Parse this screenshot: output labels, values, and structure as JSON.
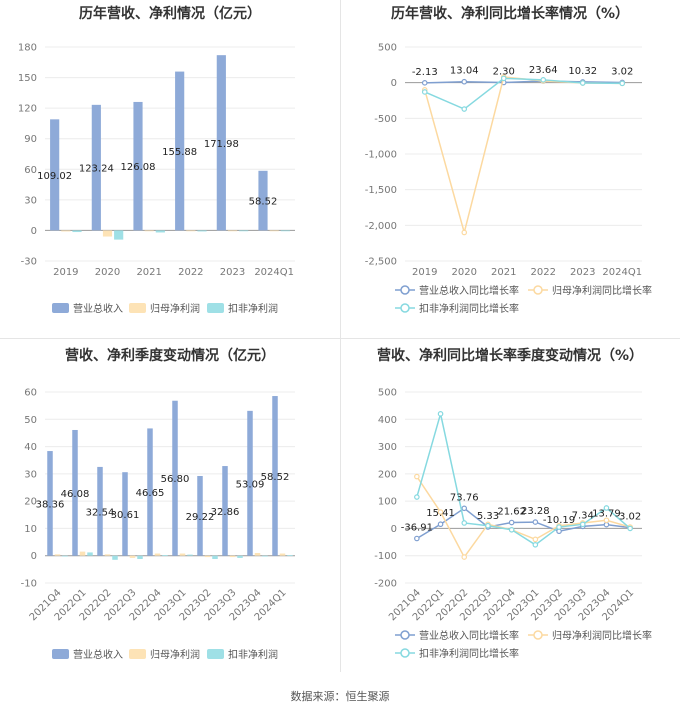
{
  "source": "数据来源：恒生聚源",
  "chart_data": [
    {
      "type": "bar",
      "title": "历年营收、净利情况（亿元）",
      "categories": [
        "2019",
        "2020",
        "2021",
        "2022",
        "2023",
        "2024Q1"
      ],
      "ylim": [
        -30,
        180
      ],
      "yticks": [
        -30,
        0,
        30,
        60,
        90,
        120,
        150,
        180
      ],
      "series": [
        {
          "name": "营业总收入",
          "color": "#8eaad8",
          "values": [
            109.02,
            123.24,
            126.08,
            155.88,
            171.98,
            58.52
          ],
          "labels": [
            "109.02",
            "123.24",
            "126.08",
            "155.88",
            "171.98",
            "58.52"
          ]
        },
        {
          "name": "归母净利润",
          "color": "#fde3b6",
          "values": [
            -1.0,
            -6.0,
            -0.8,
            -0.8,
            -0.8,
            -0.4
          ]
        },
        {
          "name": "扣非净利润",
          "color": "#9fe0e6",
          "values": [
            -1.6,
            -9.0,
            -2.0,
            -1.0,
            -0.8,
            -0.4
          ]
        }
      ],
      "legend": "bottom"
    },
    {
      "type": "line",
      "title": "历年营收、净利同比增长率情况（%）",
      "categories": [
        "2019",
        "2020",
        "2021",
        "2022",
        "2023",
        "2024Q1"
      ],
      "ylim": [
        -2500,
        500
      ],
      "yticks": [
        -2500,
        -2000,
        -1500,
        -1000,
        -500,
        0,
        500
      ],
      "series": [
        {
          "name": "营业总收入同比增长率",
          "color": "#7f9fd0",
          "values": [
            -2.13,
            13.04,
            2.3,
            23.64,
            10.32,
            3.02
          ],
          "labels": [
            "-2.13",
            "13.04",
            "2.30",
            "23.64",
            "10.32",
            "3.02"
          ]
        },
        {
          "name": "归母净利润同比增长率",
          "color": "#fcd9a0",
          "values": [
            -100,
            -2100,
            80,
            25,
            -5,
            -10
          ]
        },
        {
          "name": "扣非净利润同比增长率",
          "color": "#86d9e0",
          "values": [
            -130,
            -370,
            60,
            40,
            -5,
            -10
          ]
        }
      ],
      "legend": "bottom"
    },
    {
      "type": "bar",
      "title": "营收、净利季度变动情况（亿元）",
      "categories": [
        "2021Q4",
        "2022Q1",
        "2022Q2",
        "2022Q3",
        "2022Q4",
        "2023Q1",
        "2023Q2",
        "2023Q3",
        "2023Q4",
        "2024Q1"
      ],
      "ylim": [
        -10,
        60
      ],
      "yticks": [
        -10,
        0,
        10,
        20,
        30,
        40,
        50,
        60
      ],
      "series": [
        {
          "name": "营业总收入",
          "color": "#8eaad8",
          "values": [
            38.36,
            46.08,
            32.54,
            30.61,
            46.65,
            56.8,
            29.22,
            32.86,
            53.09,
            58.52
          ],
          "labels": [
            "38.36",
            "46.08",
            "32.54",
            "30.61",
            "46.65",
            "56.80",
            "29.22",
            "32.86",
            "53.09",
            "58.52"
          ]
        },
        {
          "name": "归母净利润",
          "color": "#fde3b6",
          "values": [
            0.5,
            1.5,
            0.5,
            -0.8,
            0.8,
            0.8,
            -0.5,
            -0.5,
            1.0,
            0.8
          ]
        },
        {
          "name": "扣非净利润",
          "color": "#9fe0e6",
          "values": [
            -0.3,
            1.2,
            -1.5,
            -1.2,
            0.2,
            0.4,
            -1.2,
            -0.8,
            -0.3,
            0.2
          ]
        }
      ],
      "legend": "bottom"
    },
    {
      "type": "line",
      "title": "营收、净利同比增长率季度变动情况（%）",
      "categories": [
        "2021Q4",
        "2022Q1",
        "2022Q2",
        "2022Q3",
        "2022Q4",
        "2023Q1",
        "2023Q2",
        "2023Q3",
        "2023Q4",
        "2024Q1"
      ],
      "ylim": [
        -200,
        500
      ],
      "yticks": [
        -200,
        -100,
        0,
        100,
        200,
        300,
        400,
        500
      ],
      "series": [
        {
          "name": "营业总收入同比增长率",
          "color": "#7f9fd0",
          "values": [
            -36.91,
            15.41,
            73.76,
            5.33,
            21.62,
            23.28,
            -10.19,
            7.34,
            13.79,
            3.02
          ],
          "labels": [
            "-36.91",
            "15.41",
            "73.76",
            "5.33",
            "21.62",
            "23.28",
            "-10.19",
            "7.34",
            "13.79",
            "3.02"
          ]
        },
        {
          "name": "归母净利润同比增长率",
          "color": "#fcd9a0",
          "values": [
            190,
            60,
            -105,
            15,
            -5,
            -40,
            10,
            20,
            30,
            5
          ]
        },
        {
          "name": "扣非净利润同比增长率",
          "color": "#86d9e0",
          "values": [
            115,
            420,
            20,
            10,
            -5,
            -60,
            5,
            15,
            75,
            0
          ]
        }
      ],
      "legend": "bottom"
    }
  ]
}
